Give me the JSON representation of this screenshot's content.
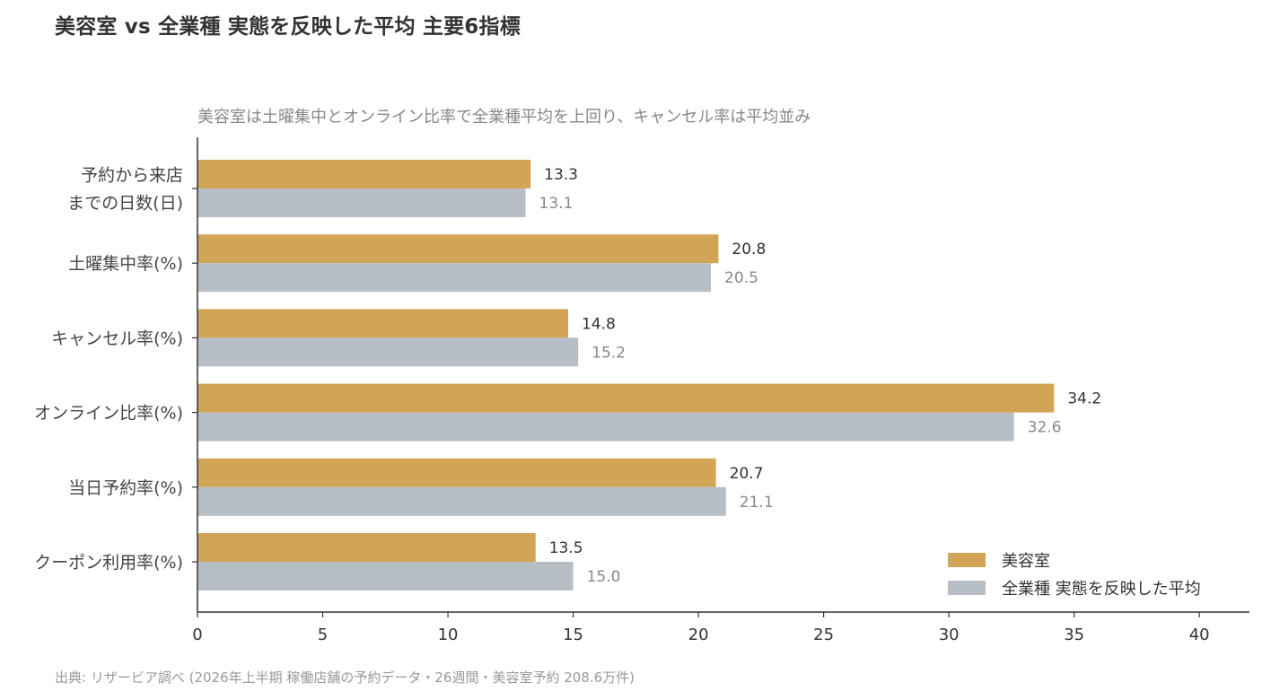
{
  "title": "美容室 vs 全業種 実態を反映した平均 主要6指標",
  "subtitle": "美容室は土曜集中とオンライン比率で全業種平均を上回り、キャンセル率は平均並み",
  "source": "出典: リザービア調べ (2026年上半期 稼働店舗の予約データ・26週間・美容室予約 208.6万件)",
  "colors": {
    "salon": "#d2a456",
    "all": "#b8bec6",
    "salon_label": "#333333",
    "all_label": "#888888"
  },
  "chart_data": {
    "type": "bar",
    "orientation": "horizontal",
    "categories": [
      "予約から来店\nまでの日数(日)",
      "土曜集中率(%)",
      "キャンセル率(%)",
      "オンライン比率(%)",
      "当日予約率(%)",
      "クーポン利用率(%)"
    ],
    "series": [
      {
        "name": "美容室",
        "values": [
          13.3,
          20.8,
          14.8,
          34.2,
          20.7,
          13.5
        ]
      },
      {
        "name": "全業種 実態を反映した平均",
        "values": [
          13.1,
          20.5,
          15.2,
          32.6,
          21.1,
          15.0
        ]
      }
    ],
    "xlim": [
      0,
      42
    ],
    "xticks": [
      0,
      5,
      10,
      15,
      20,
      25,
      30,
      35,
      40
    ],
    "grid": false,
    "legend_position": "bottom-right"
  }
}
